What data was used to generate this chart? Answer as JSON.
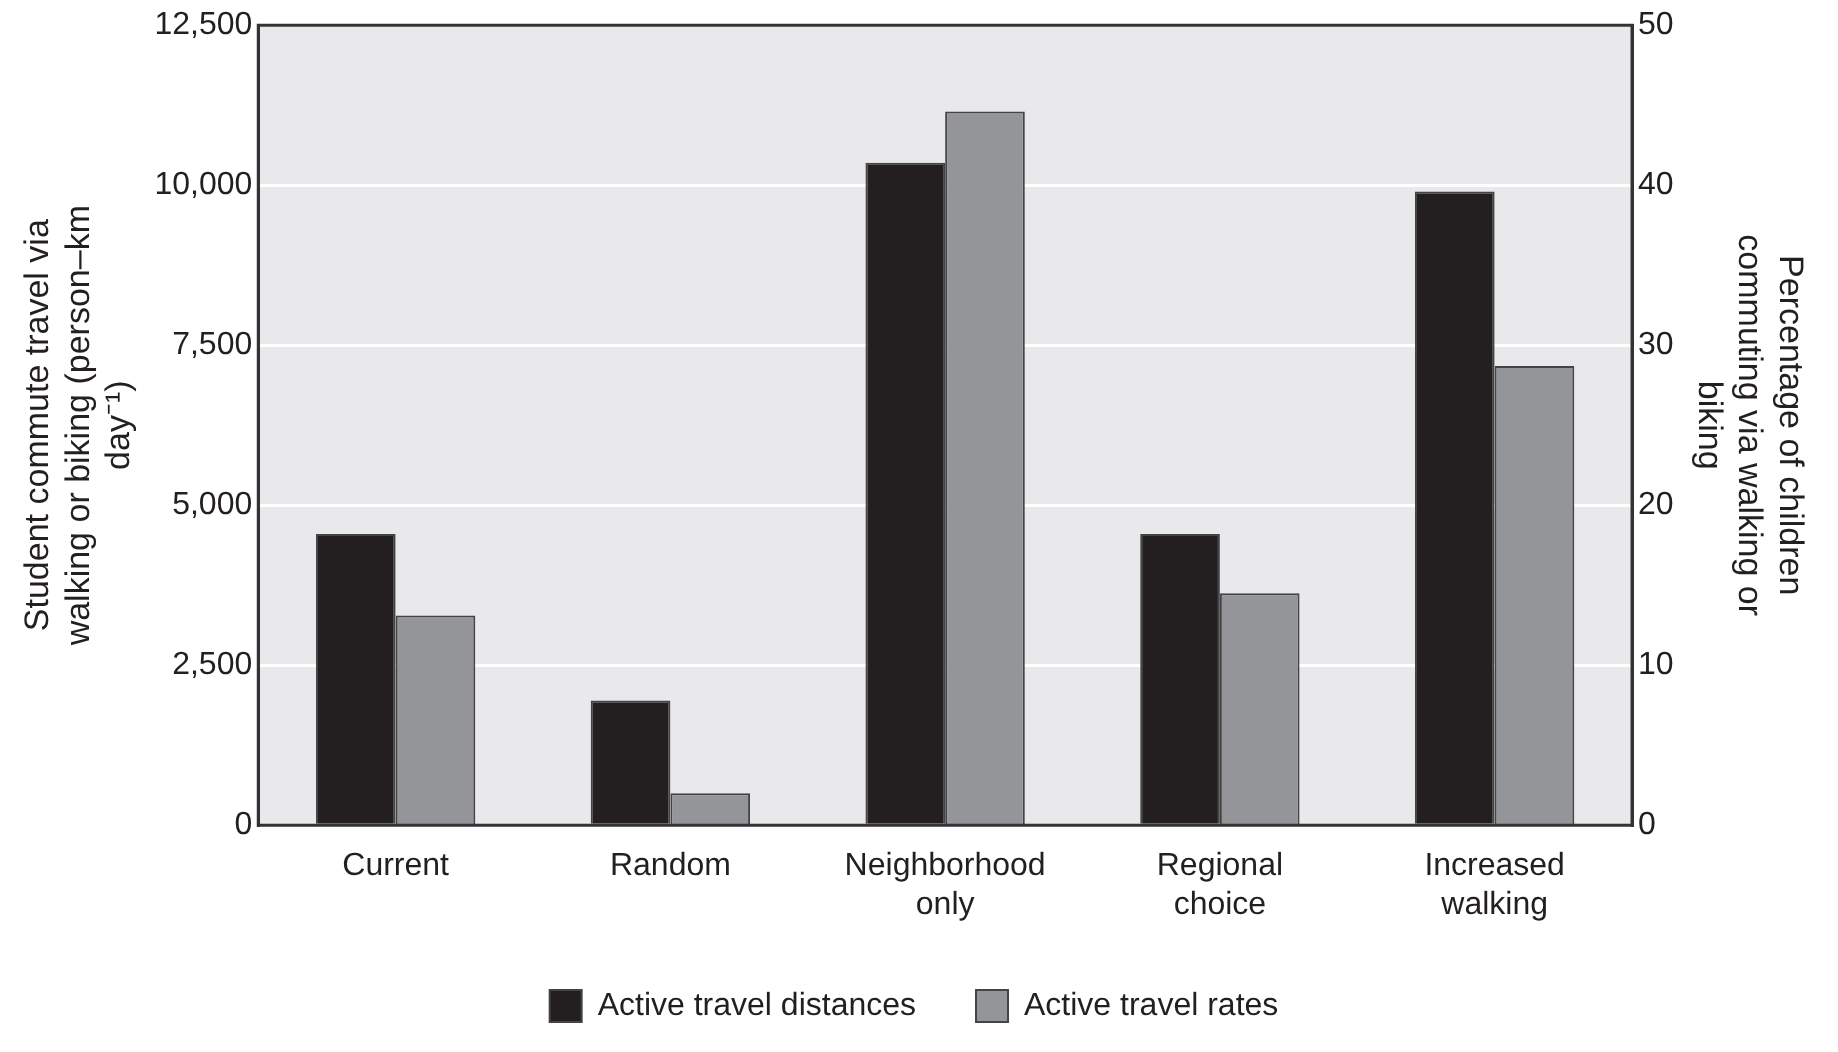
{
  "chart_data": {
    "type": "bar",
    "categories": [
      "Current",
      "Random",
      "Neighborhood only",
      "Regional choice",
      "Increased walking"
    ],
    "series": [
      {
        "name": "Active travel distances",
        "color": "#231f20",
        "values": [
          4550,
          1950,
          10350,
          4550,
          9900
        ]
      },
      {
        "name": "Active travel rates",
        "color": "#939598",
        "axis": "y2",
        "values": [
          13.1,
          2.0,
          44.6,
          14.5,
          28.7
        ]
      }
    ],
    "ylabel": "Student commute travel via walking or biking (person–km day⁻¹)",
    "y2label": "Percentage of children commuting via walking or biking",
    "ylim": [
      0,
      12500
    ],
    "yticks": [
      {
        "value": 0,
        "label": "0"
      },
      {
        "value": 2500,
        "label": "2,500"
      },
      {
        "value": 5000,
        "label": "5,000"
      },
      {
        "value": 7500,
        "label": "7,500"
      },
      {
        "value": 10000,
        "label": "10,000"
      },
      {
        "value": 12500,
        "label": "12,500"
      }
    ],
    "y2lim": [
      0,
      50
    ],
    "y2ticks": [
      0,
      10,
      20,
      30,
      40,
      50
    ],
    "grid": "y",
    "legend": "bottom"
  }
}
